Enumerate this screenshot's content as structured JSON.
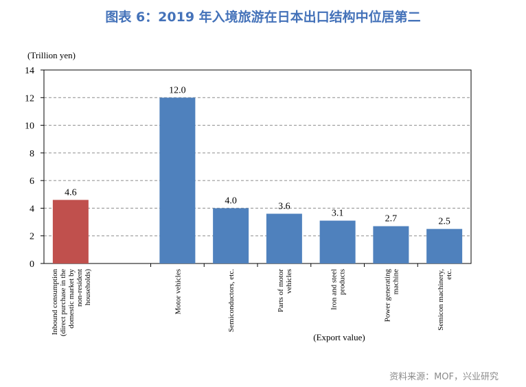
{
  "figure": {
    "title": "图表 6：2019 年入境旅游在日本出口结构中位居第二",
    "source": "资料来源：MOF，兴业研究"
  },
  "chart_data": {
    "type": "bar",
    "ylabel": "(Trillion yen)",
    "xlabel": "(Export value)",
    "ylim": [
      0,
      14
    ],
    "yticks": [
      0,
      2,
      4,
      6,
      8,
      10,
      12,
      14
    ],
    "grid": true,
    "categories": [
      "Inbound consumption (direct purchase in the domestic market by non-resident households)",
      "Motor vehicles",
      "Semiconductors, etc.",
      "Parts of motor vehicles",
      "Iron and steel products",
      "Power generating machine",
      "Semicon machinery, etc."
    ],
    "category_lines": [
      [
        "Inbound consumption",
        "(direct purchase in the",
        "domestic market by",
        "non-resident",
        "households)"
      ],
      [
        "Motor vehicles"
      ],
      [
        "Semiconductors, etc."
      ],
      [
        "Parts of motor",
        "vehicles"
      ],
      [
        "Iron and steel",
        "products"
      ],
      [
        "Power generating",
        "machine"
      ],
      [
        "Semicon machinery,",
        "etc."
      ]
    ],
    "values": [
      4.6,
      12.0,
      4.0,
      3.6,
      3.1,
      2.7,
      2.5
    ],
    "value_labels": [
      "4.6",
      "12.0",
      "4.0",
      "3.6",
      "3.1",
      "2.7",
      "2.5"
    ],
    "bar_colors": [
      "#c0504d",
      "#4f81bd",
      "#4f81bd",
      "#4f81bd",
      "#4f81bd",
      "#4f81bd",
      "#4f81bd"
    ]
  }
}
